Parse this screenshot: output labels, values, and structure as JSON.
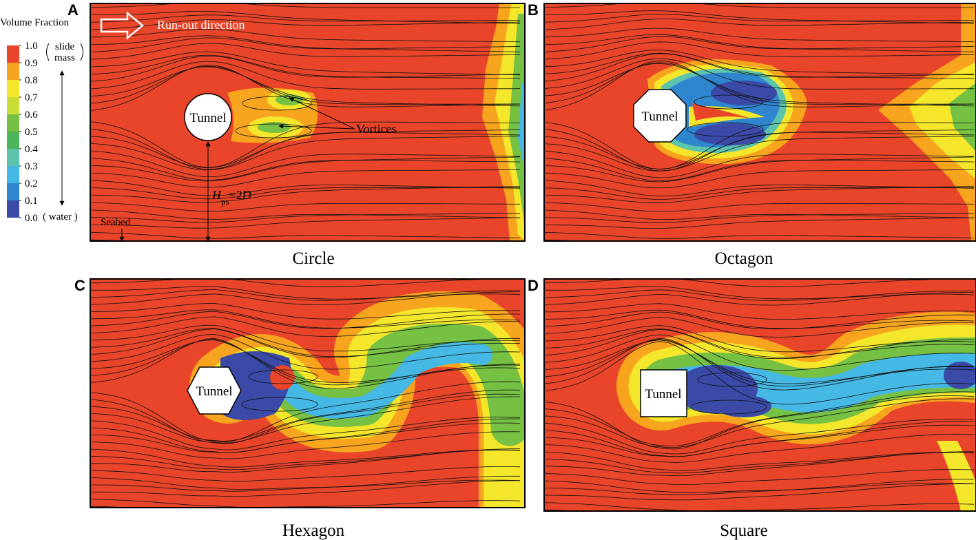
{
  "figure": {
    "colorbar": {
      "title": "Volume Fraction",
      "ticks": [
        {
          "value": 1,
          "label": "1.0"
        },
        {
          "value": 0.9,
          "label": "0.9"
        },
        {
          "value": 0.8,
          "label": "0.8"
        },
        {
          "value": 0.7,
          "label": "0.7"
        },
        {
          "value": 0.6,
          "label": "0.6"
        },
        {
          "value": 0.5,
          "label": "0.5"
        },
        {
          "value": 0.4,
          "label": "0.4"
        },
        {
          "value": 0.3,
          "label": "0.3"
        },
        {
          "value": 0.2,
          "label": "0.2"
        },
        {
          "value": 0.1,
          "label": "0.1"
        },
        {
          "value": 0,
          "label": "0.0"
        }
      ],
      "colors": [
        "#3b4aa6",
        "#2f86cf",
        "#45b8e6",
        "#5cc4ad",
        "#4cb45a",
        "#76c043",
        "#c9dd36",
        "#f4e62b",
        "#f7a41e",
        "#e8452a"
      ],
      "top_note": [
        "slide",
        "mass"
      ],
      "bottom_note": "( water )"
    },
    "panels": [
      {
        "label": "A",
        "caption": "Circle",
        "tunnel": "Tunnel"
      },
      {
        "label": "B",
        "caption": "Octagon",
        "tunnel": "Tunnel"
      },
      {
        "label": "C",
        "caption": "Hexagon",
        "tunnel": "Tunnel"
      },
      {
        "label": "D",
        "caption": "Square",
        "tunnel": "Tunnel"
      }
    ],
    "annotations": {
      "runout": "Run-out direction",
      "vortices": "Vortices",
      "seabed": "Seabed",
      "hps": {
        "main": "H",
        "sub": "ps",
        "rest": "=2",
        "italic": "D"
      }
    }
  }
}
